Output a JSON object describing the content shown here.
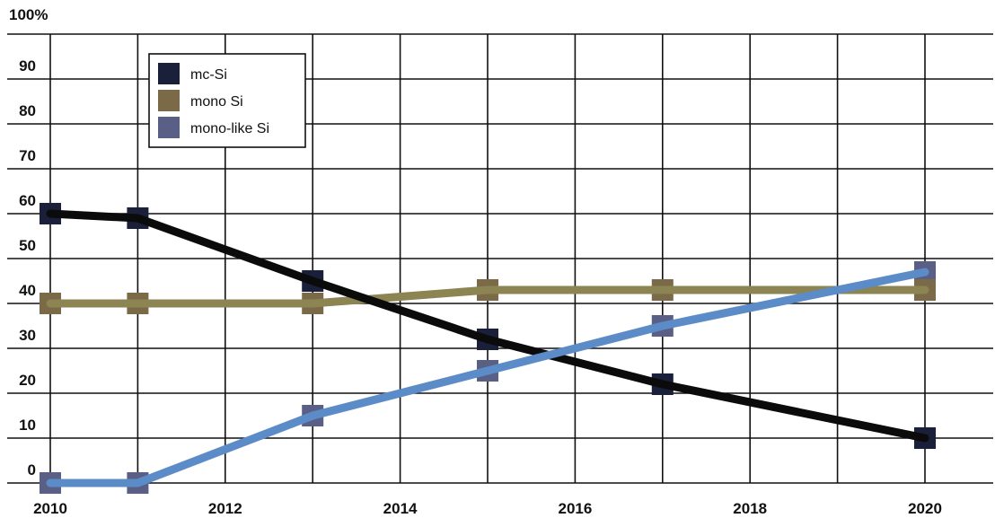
{
  "chart_data": {
    "type": "line",
    "title": "",
    "xlabel": "",
    "ylabel": "",
    "y_top_label": "100%",
    "xlim": [
      2010,
      2021
    ],
    "ylim": [
      0,
      100
    ],
    "x_ticks": [
      2010,
      2012,
      2014,
      2016,
      2018,
      2020
    ],
    "x_tick_labels": [
      "2010",
      "2012",
      "2014",
      "2016",
      "2018",
      "2020"
    ],
    "y_ticks": [
      0,
      10,
      20,
      30,
      40,
      50,
      60,
      70,
      80,
      90
    ],
    "y_tick_labels": [
      "0",
      "10",
      "20",
      "30",
      "40",
      "50",
      "60",
      "70",
      "80",
      "90"
    ],
    "grid": true,
    "legend_position": "top-left",
    "series": [
      {
        "name": "mc-Si",
        "line_color": "#0b0b0b",
        "marker_color": "#1a1f3a",
        "x": [
          2010,
          2011,
          2013,
          2015,
          2017,
          2020
        ],
        "y": [
          60,
          59,
          45,
          32,
          22,
          10
        ]
      },
      {
        "name": "mono Si",
        "line_color": "#8c8452",
        "marker_color": "#7a6a48",
        "x": [
          2010,
          2011,
          2013,
          2015,
          2017,
          2020
        ],
        "y": [
          40,
          40,
          40,
          43,
          43,
          43
        ]
      },
      {
        "name": "mono-like Si",
        "line_color": "#5b8cc8",
        "marker_color": "#5a5f86",
        "x": [
          2010,
          2011,
          2013,
          2015,
          2017,
          2020
        ],
        "y": [
          0,
          0,
          15,
          25,
          35,
          47
        ]
      }
    ]
  }
}
